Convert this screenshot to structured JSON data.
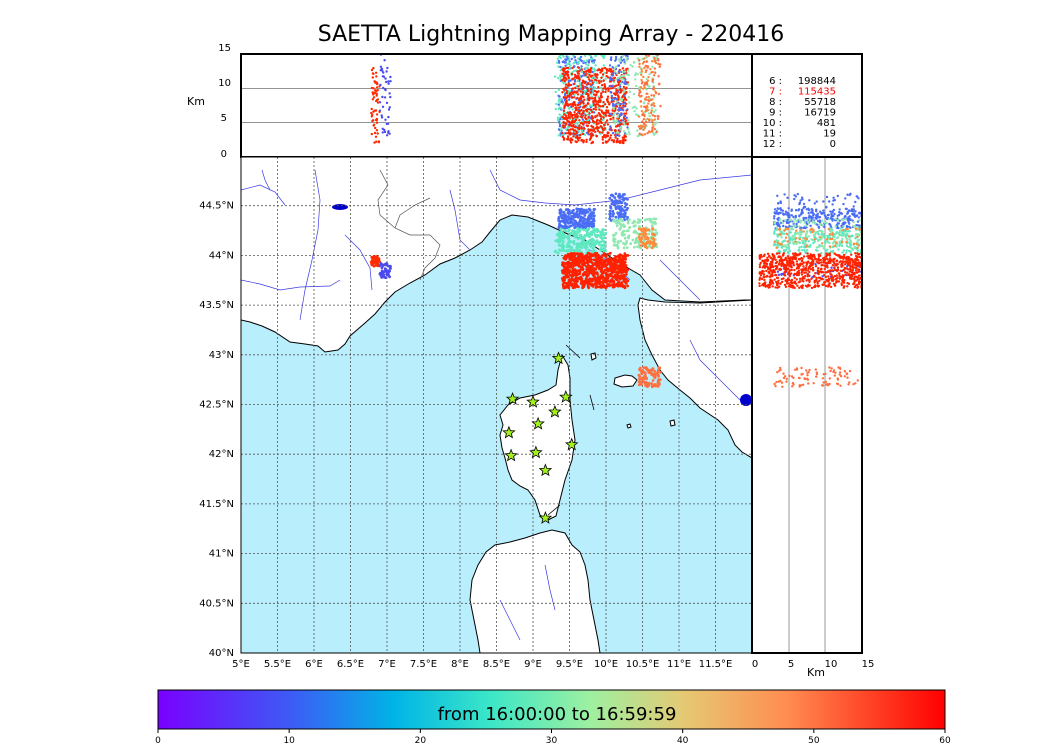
{
  "title": "SAETTA Lightning Mapping Array - 220416",
  "km_label": "Km",
  "colorbar": {
    "label": "from 16:00:00 to 16:59:59",
    "ticks": [
      "0",
      "10",
      "20",
      "30",
      "40",
      "50",
      "60"
    ],
    "range": [
      0,
      60
    ]
  },
  "colors": {
    "sea": "#b9eefc",
    "land": "#ffffff",
    "coast": "#000000",
    "rivers": "#3a3ae6",
    "borders": "#555555",
    "grid": "#555555",
    "station": "#a4f01c",
    "highlight": "#ff0000"
  },
  "station_counts": [
    {
      "n": "6",
      "count": "198844",
      "color": "#000000"
    },
    {
      "n": "7",
      "count": "115435",
      "color": "#ff0000"
    },
    {
      "n": "8",
      "count": "55718",
      "color": "#000000"
    },
    {
      "n": "9",
      "count": "16719",
      "color": "#000000"
    },
    {
      "n": "10",
      "count": "481",
      "color": "#000000"
    },
    {
      "n": "11",
      "count": "19",
      "color": "#000000"
    },
    {
      "n": "12",
      "count": "0",
      "color": "#000000"
    }
  ],
  "map": {
    "lon_range": [
      5.0,
      12.0
    ],
    "lat_range": [
      40.0,
      45.0
    ],
    "lon_ticks": [
      "5°E",
      "5.5°E",
      "6°E",
      "6.5°E",
      "7°E",
      "7.5°E",
      "8°E",
      "8.5°E",
      "9°E",
      "9.5°E",
      "10°E",
      "10.5°E",
      "11°E",
      "11.5°E"
    ],
    "lat_ticks": [
      "40°N",
      "40.5°N",
      "41°N",
      "41.5°N",
      "42°N",
      "42.5°N",
      "43°N",
      "43.5°N",
      "44°N",
      "44.5°N"
    ],
    "stations": [
      {
        "lon": 9.35,
        "lat": 42.99
      },
      {
        "lon": 8.72,
        "lat": 42.58
      },
      {
        "lon": 9.0,
        "lat": 42.55
      },
      {
        "lon": 9.45,
        "lat": 42.6
      },
      {
        "lon": 9.3,
        "lat": 42.45
      },
      {
        "lon": 9.07,
        "lat": 42.33
      },
      {
        "lon": 8.67,
        "lat": 42.24
      },
      {
        "lon": 9.53,
        "lat": 42.12
      },
      {
        "lon": 8.7,
        "lat": 42.01
      },
      {
        "lon": 9.04,
        "lat": 42.04
      },
      {
        "lon": 9.17,
        "lat": 41.86
      },
      {
        "lon": 9.17,
        "lat": 41.38
      }
    ],
    "lightning_clusters": [
      {
        "name": "west-cell-low",
        "lon": [
          6.78,
          6.9
        ],
        "lat": [
          43.92,
          44.02
        ],
        "color": "#ff2a00",
        "n": 60
      },
      {
        "name": "west-cell-high",
        "lon": [
          6.9,
          7.05
        ],
        "lat": [
          43.8,
          43.95
        ],
        "color": "#4a4af0",
        "n": 45
      },
      {
        "name": "main-cell-blue",
        "lon": [
          9.35,
          9.85
        ],
        "lat": [
          44.3,
          44.5
        ],
        "color": "#4a6df5",
        "n": 220
      },
      {
        "name": "main-cell-cyan",
        "lon": [
          9.3,
          10.0
        ],
        "lat": [
          44.05,
          44.3
        ],
        "color": "#5fe8c0",
        "n": 260
      },
      {
        "name": "main-cell-red",
        "lon": [
          9.4,
          10.3
        ],
        "lat": [
          43.7,
          44.05
        ],
        "color": "#ff2200",
        "n": 700
      },
      {
        "name": "east-cell-blue",
        "lon": [
          10.05,
          10.3
        ],
        "lat": [
          44.38,
          44.65
        ],
        "color": "#4a6df5",
        "n": 90
      },
      {
        "name": "east-cell-mix",
        "lon": [
          10.1,
          10.7
        ],
        "lat": [
          44.1,
          44.4
        ],
        "color": "#8fe8b0",
        "n": 150
      },
      {
        "name": "east-cell-orange",
        "lon": [
          10.45,
          10.68
        ],
        "lat": [
          44.1,
          44.3
        ],
        "color": "#ff8c3a",
        "n": 60
      },
      {
        "name": "elba-cell",
        "lon": [
          10.45,
          10.75
        ],
        "lat": [
          42.7,
          42.9
        ],
        "color": "#ff7040",
        "n": 90
      }
    ]
  }
}
